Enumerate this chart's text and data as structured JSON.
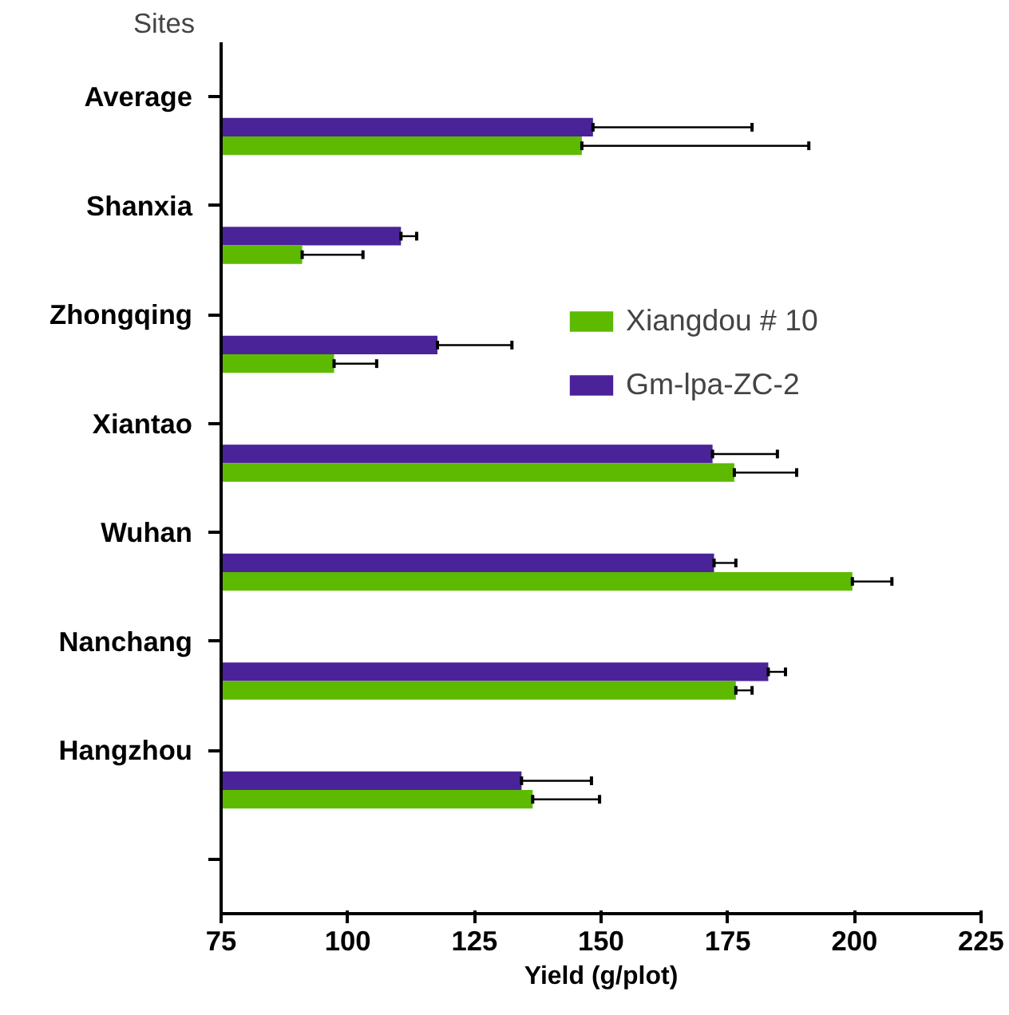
{
  "chart_data": {
    "type": "bar",
    "orientation": "horizontal",
    "ylabel": "Sites",
    "xlabel": "Yield (g/plot)",
    "categories": [
      "Average",
      "Shanxia",
      "Zhongqing",
      "Xiantao",
      "Wuhan",
      "Nanchang",
      "Hangzhou",
      null
    ],
    "series": [
      {
        "name": "Gm-lpa-ZC-2",
        "color": "#4a2398",
        "values": [
          148.4,
          110.5,
          117.7,
          172,
          172.3,
          183,
          134.3,
          null
        ],
        "errors": [
          [
            148.4,
            179.8
          ],
          [
            110.5,
            113.6
          ],
          [
            117.7,
            132.4
          ],
          [
            172,
            184.8
          ],
          [
            172.3,
            176.6
          ],
          [
            183,
            186.4
          ],
          [
            134.3,
            148.1
          ],
          null
        ]
      },
      {
        "name": "Xiangdou # 10",
        "color": "#5dba00",
        "values": [
          146.2,
          91,
          97.3,
          176.3,
          199.6,
          176.6,
          136.5,
          null
        ],
        "errors": [
          [
            146.2,
            191
          ],
          [
            91,
            103
          ],
          [
            97.3,
            105.7
          ],
          [
            176.3,
            188.6
          ],
          [
            199.6,
            207.4
          ],
          [
            176.6,
            179.8
          ],
          [
            136.5,
            149.7
          ],
          null
        ]
      }
    ],
    "xlim": [
      75,
      225
    ],
    "xticks": [
      75,
      100,
      125,
      150,
      175,
      200,
      225
    ],
    "grid": false,
    "legend": "right"
  }
}
